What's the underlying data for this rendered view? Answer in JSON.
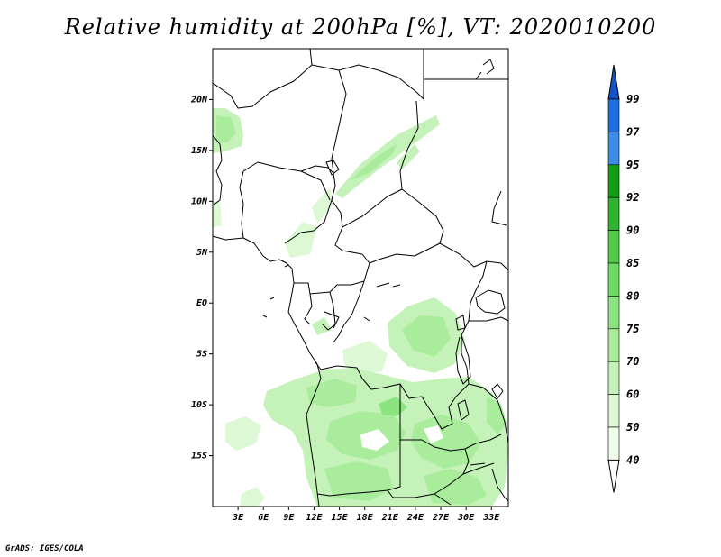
{
  "title": "Relative humidity at 200hPa [%], VT: 2020010200",
  "credit": "GrADS: IGES/COLA",
  "map": {
    "lon_range": [
      0,
      35
    ],
    "lat_range": [
      -20,
      25
    ],
    "lat_ticks": [
      {
        "lat": 20,
        "label": "20N"
      },
      {
        "lat": 15,
        "label": "15N"
      },
      {
        "lat": 10,
        "label": "10N"
      },
      {
        "lat": 5,
        "label": "5N"
      },
      {
        "lat": 0,
        "label": "EQ"
      },
      {
        "lat": -5,
        "label": "5S"
      },
      {
        "lat": -10,
        "label": "10S"
      },
      {
        "lat": -15,
        "label": "15S"
      }
    ],
    "lon_ticks": [
      {
        "lon": 3,
        "label": "3E"
      },
      {
        "lon": 6,
        "label": "6E"
      },
      {
        "lon": 9,
        "label": "9E"
      },
      {
        "lon": 12,
        "label": "12E"
      },
      {
        "lon": 15,
        "label": "15E"
      },
      {
        "lon": 18,
        "label": "18E"
      },
      {
        "lon": 21,
        "label": "21E"
      },
      {
        "lon": 24,
        "label": "24E"
      },
      {
        "lon": 27,
        "label": "27E"
      },
      {
        "lon": 30,
        "label": "30E"
      },
      {
        "lon": 33,
        "label": "33E"
      }
    ]
  },
  "colorbar": {
    "levels": [
      "40",
      "50",
      "60",
      "70",
      "75",
      "80",
      "85",
      "90",
      "92",
      "95",
      "97",
      "99"
    ],
    "colors": [
      "#f0fcec",
      "#dcf8d4",
      "#c4f2b8",
      "#a8ec9c",
      "#8ce480",
      "#6cdc64",
      "#50cc48",
      "#30b430",
      "#149c14",
      "#3c8ce8",
      "#1e6ee0",
      "#1452c8"
    ],
    "below_color": "#ffffff",
    "above_color": "#1452c8"
  }
}
